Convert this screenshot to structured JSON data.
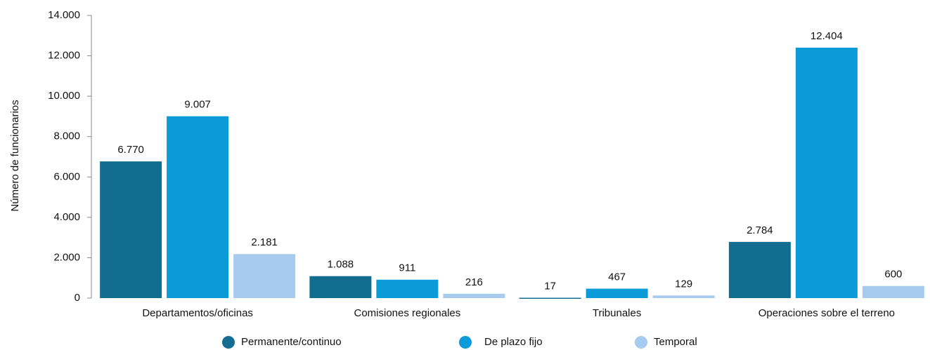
{
  "chart_data": {
    "type": "bar",
    "y_label": "Número de funcionarios",
    "categories": [
      "Departamentos/oficinas",
      "Comisiones regionales",
      "Tribunales",
      "Operaciones sobre el terreno"
    ],
    "series": [
      {
        "name": "Permanente/continuo",
        "color": "#136d91",
        "values": [
          6770,
          1088,
          17,
          2784
        ],
        "value_labels": [
          "6.770",
          "1.088",
          "17",
          "2.784"
        ]
      },
      {
        "name": "De plazo fijo",
        "color": "#0a9bd8",
        "values": [
          9007,
          911,
          467,
          12404
        ],
        "value_labels": [
          "9.007",
          "911",
          "467",
          "12.404"
        ]
      },
      {
        "name": "Temporal",
        "color": "#a6cbee",
        "values": [
          2181,
          216,
          129,
          600
        ],
        "value_labels": [
          "2.181",
          "216",
          "129",
          "600"
        ]
      }
    ],
    "ylim": [
      0,
      14000
    ],
    "yticks": [
      0,
      {
        "value": 2000,
        "label": "2.000"
      },
      {
        "value": 4000,
        "label": "4.000"
      },
      {
        "value": 6000,
        "label": "6.000"
      },
      {
        "value": 8000,
        "label": "8.000"
      },
      {
        "value": 10000,
        "label": "10.000"
      },
      {
        "value": 12000,
        "label": "12.000"
      },
      {
        "value": 14000,
        "label": "14.000"
      }
    ],
    "legend": "bottom"
  }
}
